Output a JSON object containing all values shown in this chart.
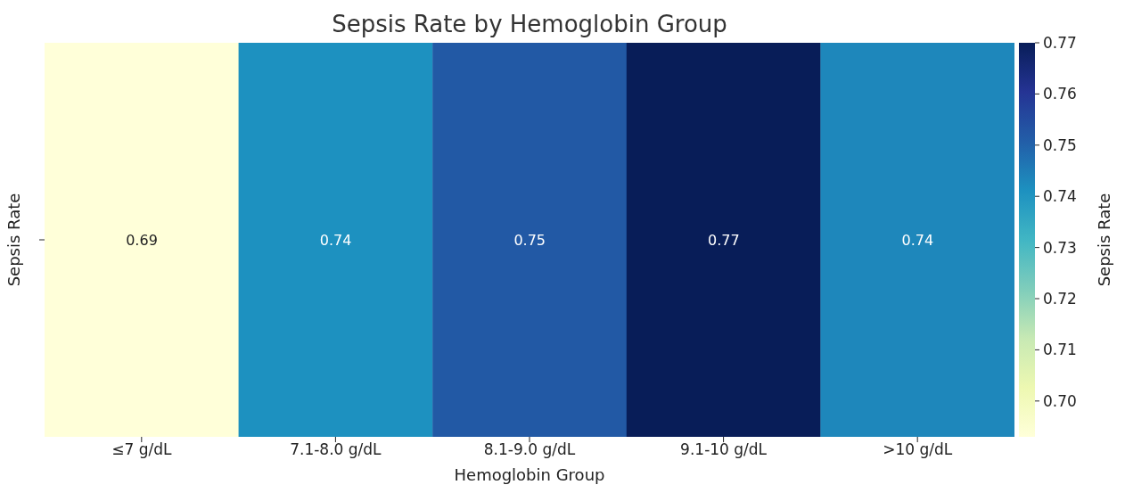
{
  "chart_data": {
    "type": "heatmap",
    "title": "Sepsis Rate by Hemoglobin Group",
    "xlabel": "Hemoglobin Group",
    "ylabel": "Sepsis Rate",
    "clabel": "Sepsis Rate",
    "categories": [
      "≤7 g/dL",
      "7.1-8.0 g/dL",
      "8.1-9.0 g/dL",
      "9.1-10 g/dL",
      ">10 g/dL"
    ],
    "y_categories": [
      null
    ],
    "cells": [
      [
        0.693,
        0.741,
        0.752,
        0.77,
        0.743
      ]
    ],
    "cell_labels": [
      [
        "0.69",
        "0.74",
        "0.75",
        "0.77",
        "0.74"
      ]
    ],
    "clim": [
      0.693,
      0.77
    ],
    "cticks": [
      {
        "value": 0.7,
        "label": "0.70"
      },
      0.71,
      0.72,
      0.73,
      0.74,
      0.75,
      0.76,
      0.77
    ]
  }
}
